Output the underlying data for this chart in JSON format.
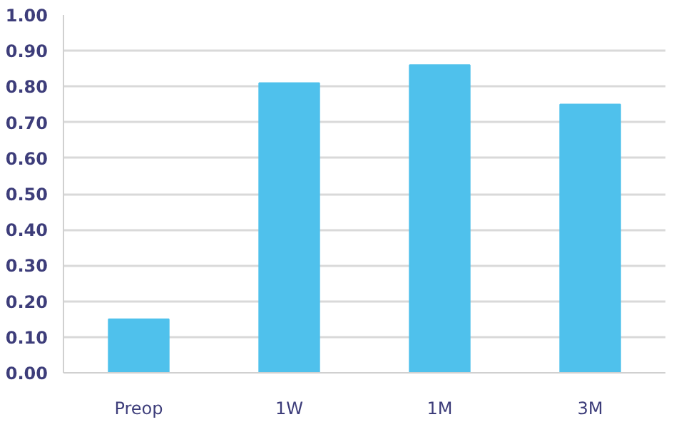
{
  "chart_data": {
    "type": "bar",
    "categories": [
      "Preop",
      "1W",
      "1M",
      "3M"
    ],
    "values": [
      0.15,
      0.81,
      0.86,
      0.75
    ],
    "color": "#4fc1ec",
    "ylim": [
      0,
      1
    ],
    "yticks": [
      {
        "value": 0,
        "label": "0.00"
      },
      {
        "value": 0.1,
        "label": "0.10"
      },
      {
        "value": 0.2,
        "label": "0.20"
      },
      {
        "value": 0.3,
        "label": "0.30"
      },
      {
        "value": 0.4,
        "label": "0.40"
      },
      {
        "value": 0.5,
        "label": "0.50"
      },
      {
        "value": 0.6,
        "label": "0.60"
      },
      {
        "value": 0.7,
        "label": "0.70"
      },
      {
        "value": 0.8,
        "label": "0.80"
      },
      {
        "value": 0.9,
        "label": "0.90"
      },
      {
        "value": 1,
        "label": "1.00"
      }
    ],
    "grid": "y"
  }
}
